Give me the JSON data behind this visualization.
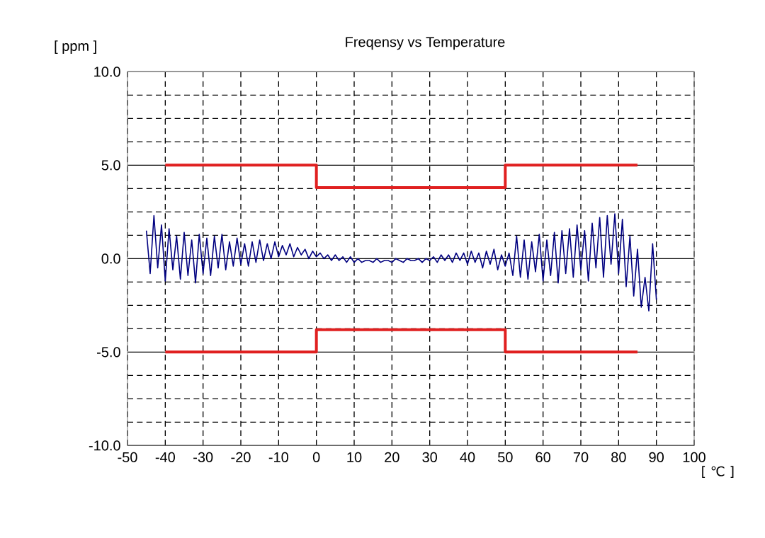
{
  "chart_data": {
    "type": "line",
    "title": "Freqensy vs Temperature",
    "xlabel": "[ ℃ ]",
    "ylabel": "[ ppm ]",
    "xlim": [
      -50,
      100
    ],
    "xticks": [
      -50,
      -40,
      -30,
      -20,
      -10,
      0,
      10,
      20,
      30,
      40,
      50,
      60,
      70,
      80,
      90,
      100
    ],
    "ylim": [
      -10,
      10
    ],
    "yticks": [
      {
        "value": -10,
        "label": "-10.0"
      },
      {
        "value": -5,
        "label": "-5.0"
      },
      {
        "value": 0,
        "label": "0.0"
      },
      {
        "value": 5,
        "label": "5.0"
      },
      {
        "value": 10,
        "label": "10.0"
      }
    ],
    "grid": true,
    "marker": "none",
    "line_style": "solid",
    "series": [
      {
        "color": "#000080",
        "x": [
          -45,
          -44,
          -43,
          -42,
          -41,
          -40,
          -39,
          -38,
          -37,
          -36,
          -35,
          -34,
          -33,
          -32,
          -31,
          -30,
          -29,
          -28,
          -27,
          -26,
          -25,
          -24,
          -23,
          -22,
          -21,
          -20,
          -19,
          -18,
          -17,
          -16,
          -15,
          -14,
          -13,
          -12,
          -11,
          -10,
          -9,
          -8,
          -7,
          -6,
          -5,
          -4,
          -3,
          -2,
          -1,
          0,
          1,
          2,
          3,
          4,
          5,
          6,
          7,
          8,
          9,
          10,
          11,
          12,
          13,
          14,
          15,
          16,
          17,
          18,
          19,
          20,
          21,
          22,
          23,
          24,
          25,
          26,
          27,
          28,
          29,
          30,
          31,
          32,
          33,
          34,
          35,
          36,
          37,
          38,
          39,
          40,
          41,
          42,
          43,
          44,
          45,
          46,
          47,
          48,
          49,
          50,
          51,
          52,
          53,
          54,
          55,
          56,
          57,
          58,
          59,
          60,
          61,
          62,
          63,
          64,
          65,
          66,
          67,
          68,
          69,
          70,
          71,
          72,
          73,
          74,
          75,
          76,
          77,
          78,
          79,
          80,
          81,
          82,
          83,
          84,
          85,
          86,
          87,
          88,
          89,
          90
        ],
        "values": [
          1.5,
          -0.8,
          2.3,
          -0.5,
          1.8,
          -1.2,
          1.6,
          -0.6,
          1.2,
          -1.1,
          1.4,
          -0.9,
          1.0,
          -1.3,
          1.3,
          -0.8,
          1.1,
          -0.9,
          1.2,
          -0.5,
          1.3,
          -0.6,
          0.9,
          -0.4,
          1.1,
          -0.3,
          0.8,
          -0.4,
          0.9,
          -0.2,
          1.0,
          -0.1,
          0.8,
          0.0,
          0.9,
          0.1,
          0.7,
          0.2,
          0.8,
          0.1,
          0.6,
          0.2,
          0.5,
          0.0,
          0.4,
          0.1,
          0.3,
          0.0,
          0.2,
          -0.1,
          0.2,
          -0.1,
          0.1,
          -0.2,
          0.1,
          -0.2,
          0.0,
          -0.2,
          -0.1,
          -0.1,
          -0.2,
          0.0,
          -0.2,
          -0.1,
          -0.1,
          -0.2,
          0.0,
          -0.1,
          -0.2,
          0.0,
          -0.1,
          -0.1,
          0.0,
          -0.2,
          0.0,
          -0.1,
          0.1,
          -0.2,
          0.2,
          -0.1,
          0.2,
          -0.2,
          0.3,
          -0.1,
          0.3,
          -0.3,
          0.4,
          -0.2,
          0.3,
          -0.5,
          0.4,
          -0.3,
          0.5,
          -0.6,
          0.2,
          -0.4,
          0.3,
          -0.9,
          1.2,
          -1.0,
          1.0,
          -1.1,
          0.9,
          -0.7,
          1.3,
          -1.2,
          1.0,
          -0.9,
          1.4,
          -1.3,
          1.5,
          -0.8,
          1.6,
          -1.0,
          1.8,
          -0.6,
          1.5,
          -1.2,
          1.9,
          -0.5,
          2.2,
          -1.0,
          2.3,
          -0.3,
          2.4,
          -0.8,
          2.1,
          -1.5,
          1.2,
          -2.0,
          0.5,
          -2.6,
          -1.0,
          -2.8,
          0.8,
          -2.2
        ]
      },
      {
        "color": "#e02020",
        "x": [
          -40,
          0,
          0,
          50,
          50,
          85
        ],
        "values": [
          5,
          5,
          3.8,
          3.8,
          5,
          5
        ]
      },
      {
        "color": "#e02020",
        "x": [
          -40,
          0,
          0,
          50,
          50,
          85
        ],
        "values": [
          -5,
          -5,
          -3.8,
          -3.8,
          -5,
          -5
        ]
      }
    ]
  }
}
